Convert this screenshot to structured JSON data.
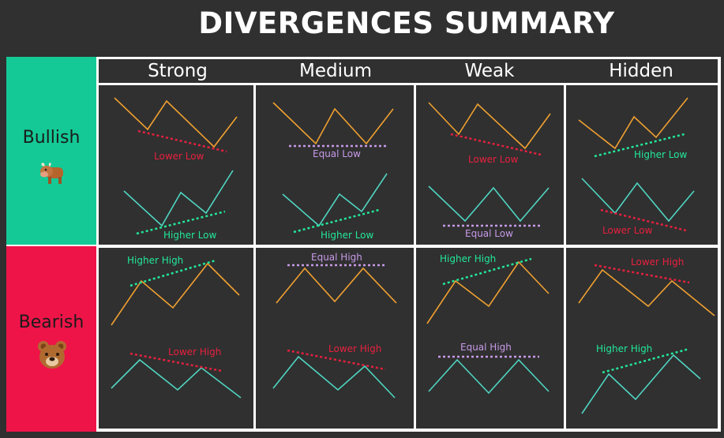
{
  "title": "DIVERGENCES SUMMARY",
  "columns": [
    "Strong",
    "Medium",
    "Weak",
    "Hidden"
  ],
  "rows": [
    "Bullish",
    "Bearish"
  ],
  "labels": {
    "bull_strong_price": "Lower Low",
    "bull_strong_osc": "Higher Low",
    "bull_medium_price": "Equal Low",
    "bull_medium_osc": "Higher Low",
    "bull_weak_price": "Lower Low",
    "bull_weak_osc": "Equal Low",
    "bull_hidden_price": "Higher Low",
    "bull_hidden_osc": "Lower Low",
    "bear_strong_price": "Higher High",
    "bear_strong_osc": "Lower High",
    "bear_medium_price": "Equal High",
    "bear_medium_osc": "Lower High",
    "bear_weak_price": "Higher High",
    "bear_weak_osc": "Equal High",
    "bear_hidden_price": "Lower High",
    "bear_hidden_osc": "Higher High"
  },
  "colors": {
    "price_line": "#f0a030",
    "oscillator_line": "#4fd6c2",
    "label_red": "#e8203e",
    "label_green": "#22e89a",
    "label_purple": "#c79ae8",
    "bullish_bg": "#14c996",
    "bearish_bg": "#ee1448"
  },
  "icons": {
    "bullish": "bull-emoji-icon",
    "bearish": "bear-emoji-icon"
  }
}
